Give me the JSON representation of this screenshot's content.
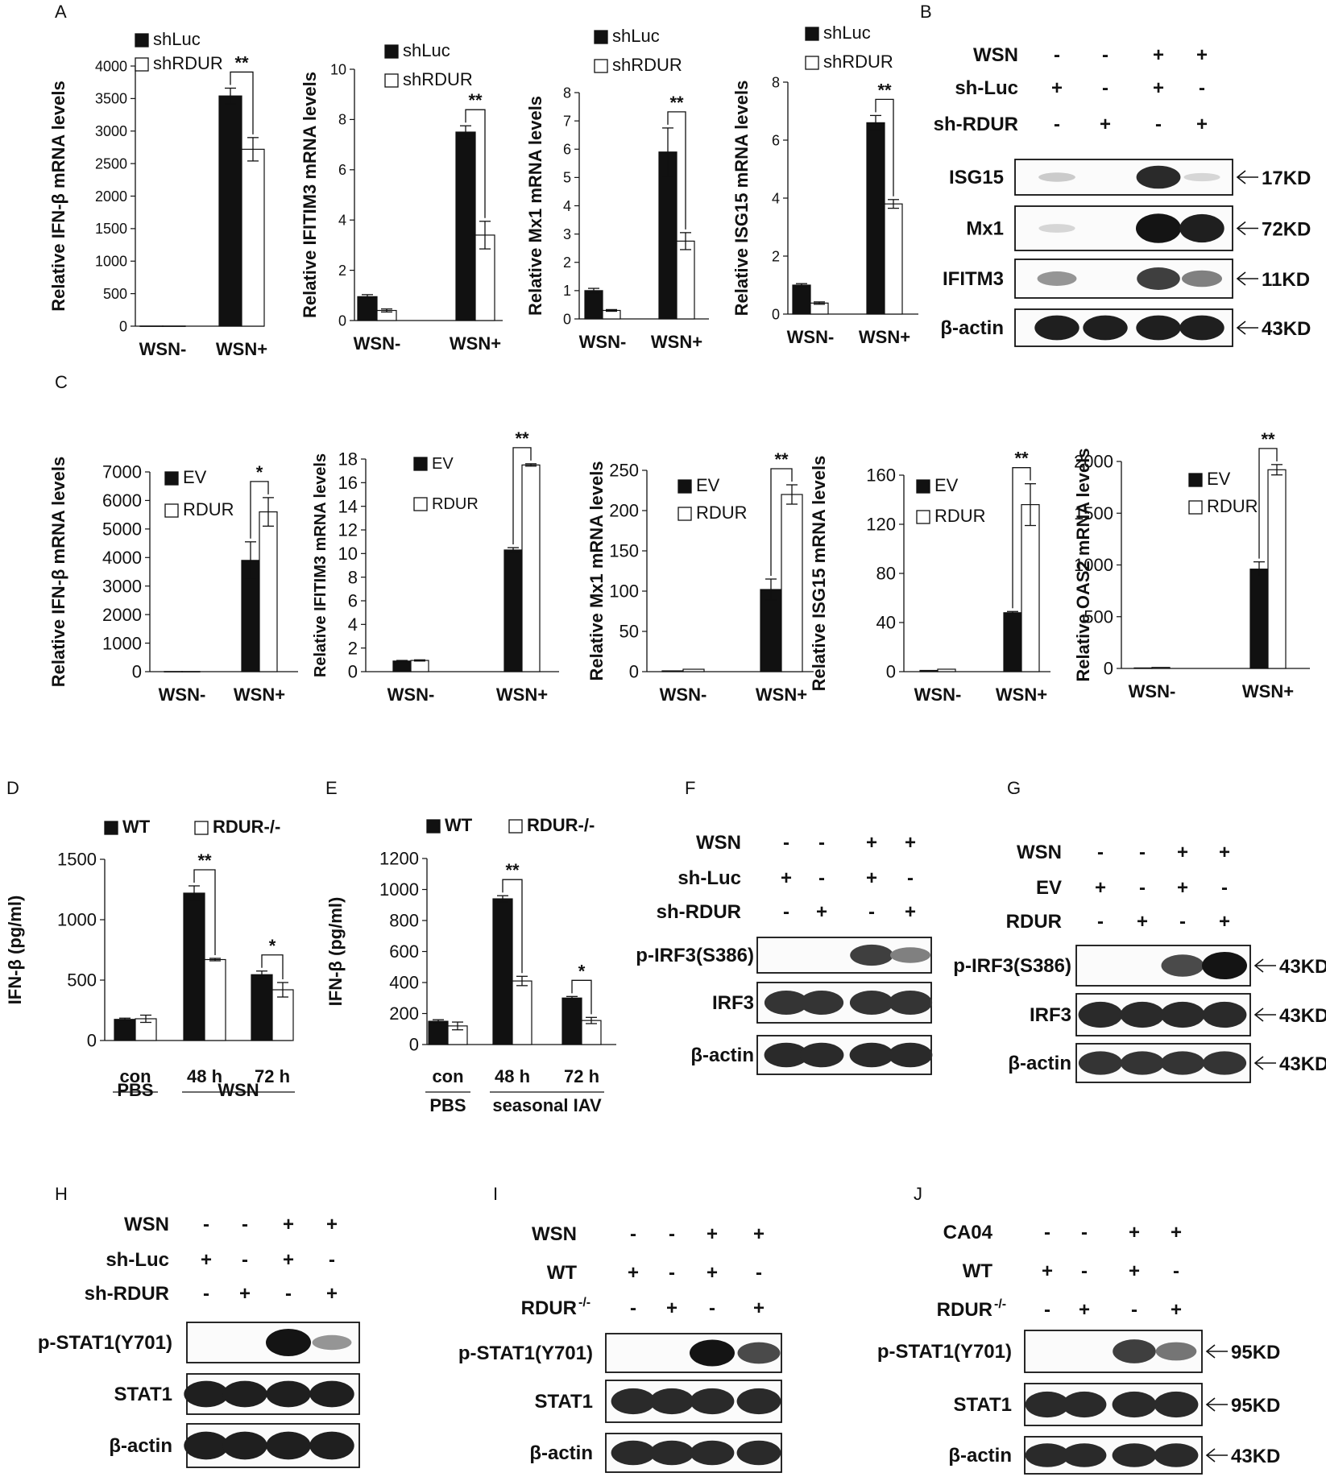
{
  "panel_letters": [
    "A",
    "B",
    "C",
    "D",
    "E",
    "F",
    "G",
    "H",
    "I",
    "J"
  ],
  "chart_data": [
    {
      "panel": "A",
      "type": "bar",
      "ylabel": "Relative IFN-β mRNA levels",
      "categories": [
        "WSN-",
        "WSN+"
      ],
      "ylim": [
        0,
        4000
      ],
      "yticks": [
        0,
        500,
        1000,
        1500,
        2000,
        2500,
        3000,
        3500,
        4000
      ],
      "series": [
        {
          "name": "shLuc",
          "fill": "#111111",
          "values": [
            2,
            3540
          ],
          "err": [
            0,
            120
          ]
        },
        {
          "name": "shRDUR",
          "fill": "#ffffff",
          "values": [
            2,
            2720
          ],
          "err": [
            0,
            180
          ]
        }
      ],
      "sig": [
        {
          "cat": 1,
          "label": "**"
        }
      ]
    },
    {
      "panel": "A",
      "type": "bar",
      "ylabel": "Relative IFITIM3 mRNA levels",
      "categories": [
        "WSN-",
        "WSN+"
      ],
      "ylim": [
        0,
        10
      ],
      "yticks": [
        0,
        2,
        4,
        6,
        8,
        10
      ],
      "series": [
        {
          "name": "shLuc",
          "fill": "#111111",
          "values": [
            0.95,
            7.5
          ],
          "err": [
            0.08,
            0.25
          ]
        },
        {
          "name": "shRDUR",
          "fill": "#ffffff",
          "values": [
            0.4,
            3.4
          ],
          "err": [
            0.06,
            0.55
          ]
        }
      ],
      "sig": [
        {
          "cat": 1,
          "label": "**"
        }
      ]
    },
    {
      "panel": "A",
      "type": "bar",
      "ylabel": "Relative Mx1 mRNA levels",
      "categories": [
        "WSN-",
        "WSN+"
      ],
      "ylim": [
        0,
        8
      ],
      "yticks": [
        0,
        1,
        2,
        3,
        4,
        5,
        6,
        7,
        8
      ],
      "series": [
        {
          "name": "shLuc",
          "fill": "#111111",
          "values": [
            1.0,
            5.9
          ],
          "err": [
            0.08,
            0.85
          ]
        },
        {
          "name": "shRDUR",
          "fill": "#ffffff",
          "values": [
            0.3,
            2.75
          ],
          "err": [
            0.03,
            0.3
          ]
        }
      ],
      "sig": [
        {
          "cat": 1,
          "label": "**"
        }
      ]
    },
    {
      "panel": "A",
      "type": "bar",
      "ylabel": "Relative ISG15 mRNA levels",
      "categories": [
        "WSN-",
        "WSN+"
      ],
      "ylim": [
        0,
        8
      ],
      "yticks": [
        0,
        2,
        4,
        6,
        8
      ],
      "series": [
        {
          "name": "shLuc",
          "fill": "#111111",
          "values": [
            1.0,
            6.6
          ],
          "err": [
            0.05,
            0.25
          ]
        },
        {
          "name": "shRDUR",
          "fill": "#ffffff",
          "values": [
            0.38,
            3.8
          ],
          "err": [
            0.04,
            0.15
          ]
        }
      ],
      "sig": [
        {
          "cat": 1,
          "label": "**"
        }
      ]
    },
    {
      "panel": "C",
      "type": "bar",
      "ylabel": "Relative IFN-β  mRNA levels",
      "categories": [
        "WSN-",
        "WSN+"
      ],
      "ylim": [
        0,
        7000
      ],
      "yticks": [
        0,
        1000,
        2000,
        3000,
        4000,
        5000,
        6000,
        7000
      ],
      "series": [
        {
          "name": "EV",
          "fill": "#111111",
          "values": [
            5,
            3900
          ],
          "err": [
            0,
            650
          ]
        },
        {
          "name": "RDUR",
          "fill": "#ffffff",
          "values": [
            5,
            5600
          ],
          "err": [
            0,
            500
          ]
        }
      ],
      "sig": [
        {
          "cat": 1,
          "label": "*"
        }
      ]
    },
    {
      "panel": "C",
      "type": "bar",
      "ylabel": "Relative IFITIM3 mRNA levels",
      "categories": [
        "WSN-",
        "WSN+"
      ],
      "ylim": [
        0,
        18
      ],
      "yticks": [
        0,
        2,
        4,
        6,
        8,
        10,
        12,
        14,
        16,
        18
      ],
      "series": [
        {
          "name": "EV",
          "fill": "#111111",
          "values": [
            0.9,
            10.3
          ],
          "err": [
            0.05,
            0.2
          ]
        },
        {
          "name": "RDUR",
          "fill": "#ffffff",
          "values": [
            0.95,
            17.5
          ],
          "err": [
            0.05,
            0.1
          ]
        }
      ],
      "sig": [
        {
          "cat": 1,
          "label": "**"
        }
      ]
    },
    {
      "panel": "C",
      "type": "bar",
      "ylabel": "Relative Mx1 mRNA levels",
      "categories": [
        "WSN-",
        "WSN+"
      ],
      "ylim": [
        0,
        250
      ],
      "yticks": [
        0,
        50,
        100,
        150,
        200,
        250
      ],
      "series": [
        {
          "name": "EV",
          "fill": "#111111",
          "values": [
            1,
            102
          ],
          "err": [
            0,
            13
          ]
        },
        {
          "name": "RDUR",
          "fill": "#ffffff",
          "values": [
            3,
            220
          ],
          "err": [
            0,
            12
          ]
        }
      ],
      "sig": [
        {
          "cat": 1,
          "label": "**"
        }
      ]
    },
    {
      "panel": "C",
      "type": "bar",
      "ylabel": "Relative ISG15 mRNA levels",
      "categories": [
        "WSN-",
        "WSN+"
      ],
      "ylim": [
        0,
        160
      ],
      "yticks": [
        0,
        40,
        80,
        120,
        160
      ],
      "series": [
        {
          "name": "EV",
          "fill": "#111111",
          "values": [
            1,
            48
          ],
          "err": [
            0,
            1
          ]
        },
        {
          "name": "RDUR",
          "fill": "#ffffff",
          "values": [
            2,
            136
          ],
          "err": [
            0,
            17
          ]
        }
      ],
      "sig": [
        {
          "cat": 1,
          "label": "**"
        }
      ]
    },
    {
      "panel": "C",
      "type": "bar",
      "ylabel": "Relative OAS2 mRNA levels",
      "categories": [
        "WSN-",
        "WSN+"
      ],
      "ylim": [
        0,
        2000
      ],
      "yticks": [
        0,
        500,
        1000,
        1500,
        2000
      ],
      "series": [
        {
          "name": "EV",
          "fill": "#111111",
          "values": [
            5,
            960
          ],
          "err": [
            0,
            70
          ]
        },
        {
          "name": "RDUR",
          "fill": "#ffffff",
          "values": [
            10,
            1920
          ],
          "err": [
            0,
            50
          ]
        }
      ],
      "sig": [
        {
          "cat": 1,
          "label": "**"
        }
      ]
    },
    {
      "panel": "D",
      "type": "bar",
      "ylabel": "IFN-β (pg/ml)",
      "categories": [
        "con",
        "48 h",
        "72 h"
      ],
      "groups": [
        {
          "label": "PBS",
          "from": 0,
          "to": 0
        },
        {
          "label": "WSN",
          "from": 1,
          "to": 2
        }
      ],
      "ylim": [
        0,
        1500
      ],
      "yticks": [
        0,
        500,
        1000,
        1500
      ],
      "series": [
        {
          "name": "WT",
          "fill": "#111111",
          "values": [
            175,
            1220,
            545
          ],
          "err": [
            10,
            60,
            30
          ]
        },
        {
          "name": "RDUR-/-",
          "fill": "#ffffff",
          "values": [
            180,
            670,
            420
          ],
          "err": [
            30,
            10,
            60
          ]
        }
      ],
      "sig": [
        {
          "cat": 1,
          "label": "**"
        },
        {
          "cat": 2,
          "label": "*"
        }
      ]
    },
    {
      "panel": "E",
      "type": "bar",
      "ylabel": "IFN-β (pg/ml)",
      "categories": [
        "con",
        "48 h",
        "72 h"
      ],
      "groups": [
        {
          "label": "PBS",
          "from": 0,
          "to": 0
        },
        {
          "label": "seasonal IAV",
          "from": 1,
          "to": 2
        }
      ],
      "ylim": [
        0,
        1200
      ],
      "yticks": [
        0,
        200,
        400,
        600,
        800,
        1000,
        1200
      ],
      "series": [
        {
          "name": "WT",
          "fill": "#111111",
          "values": [
            150,
            940,
            300
          ],
          "err": [
            10,
            20,
            10
          ]
        },
        {
          "name": "RDUR-/-",
          "fill": "#ffffff",
          "values": [
            120,
            410,
            155
          ],
          "err": [
            25,
            30,
            20
          ]
        }
      ],
      "sig": [
        {
          "cat": 1,
          "label": "**"
        },
        {
          "cat": 2,
          "label": "*"
        }
      ]
    }
  ],
  "blots": [
    {
      "panel": "B",
      "conditions": [
        {
          "label": "WSN",
          "signs": [
            "-",
            "-",
            "+",
            "+"
          ]
        },
        {
          "label": "sh-Luc",
          "signs": [
            "+",
            "-",
            "+",
            "-"
          ]
        },
        {
          "label": "sh-RDUR",
          "signs": [
            "-",
            "+",
            "-",
            "+"
          ]
        }
      ],
      "rows": [
        {
          "label": "ISG15",
          "size": "17KD",
          "intensity": [
            0.15,
            0,
            0.9,
            0.1
          ]
        },
        {
          "label": "Mx1",
          "size": "72KD",
          "intensity": [
            0.1,
            0,
            1,
            0.95
          ]
        },
        {
          "label": "IFITM3",
          "size": "11KD",
          "intensity": [
            0.4,
            0,
            0.8,
            0.5
          ]
        },
        {
          "label": "β-actin",
          "size": "43KD",
          "intensity": [
            0.95,
            0.95,
            0.95,
            0.95
          ]
        }
      ]
    },
    {
      "panel": "F",
      "conditions": [
        {
          "label": "WSN",
          "signs": [
            "-",
            "-",
            "+",
            "+"
          ]
        },
        {
          "label": "sh-Luc",
          "signs": [
            "+",
            "-",
            "+",
            "-"
          ]
        },
        {
          "label": "sh-RDUR",
          "signs": [
            "-",
            "+",
            "-",
            "+"
          ]
        }
      ],
      "rows": [
        {
          "label": "p-IRF3(S386)",
          "size": "",
          "intensity": [
            0,
            0,
            0.8,
            0.5
          ]
        },
        {
          "label": "IRF3",
          "size": "",
          "intensity": [
            0.85,
            0.85,
            0.85,
            0.85
          ]
        },
        {
          "label": "β-actin",
          "size": "",
          "intensity": [
            0.9,
            0.9,
            0.9,
            0.9
          ]
        }
      ]
    },
    {
      "panel": "G",
      "conditions": [
        {
          "label": "WSN",
          "signs": [
            "-",
            "-",
            "+",
            "+"
          ]
        },
        {
          "label": "EV",
          "signs": [
            "+",
            "-",
            "+",
            "-"
          ]
        },
        {
          "label": "RDUR",
          "signs": [
            "-",
            "+",
            "-",
            "+"
          ]
        }
      ],
      "rows": [
        {
          "label": "p-IRF3(S386)",
          "size": "43KD",
          "intensity": [
            0,
            0,
            0.75,
            1
          ]
        },
        {
          "label": "IRF3",
          "size": "43KD",
          "intensity": [
            0.9,
            0.9,
            0.9,
            0.9
          ]
        },
        {
          "label": "β-actin",
          "size": "43KD",
          "intensity": [
            0.85,
            0.85,
            0.85,
            0.85
          ]
        }
      ]
    },
    {
      "panel": "H",
      "conditions": [
        {
          "label": "WSN",
          "signs": [
            "-",
            "-",
            "+",
            "+"
          ]
        },
        {
          "label": "sh-Luc",
          "signs": [
            "+",
            "-",
            "+",
            "-"
          ]
        },
        {
          "label": "sh-RDUR",
          "signs": [
            "-",
            "+",
            "-",
            "+"
          ]
        }
      ],
      "rows": [
        {
          "label": "p-STAT1(Y701)",
          "size": "",
          "intensity": [
            0,
            0,
            1,
            0.4
          ]
        },
        {
          "label": "STAT1",
          "size": "",
          "intensity": [
            0.95,
            0.95,
            0.95,
            0.95
          ]
        },
        {
          "label": "β-actin",
          "size": "",
          "intensity": [
            0.95,
            0.95,
            0.95,
            0.95
          ]
        }
      ]
    },
    {
      "panel": "I",
      "conditions": [
        {
          "label": "WSN",
          "signs": [
            "-",
            "-",
            "+",
            "+"
          ]
        },
        {
          "label": "WT",
          "signs": [
            "+",
            "-",
            "+",
            "-"
          ]
        },
        {
          "label": "RDUR",
          "sup": "-/-",
          "signs": [
            "-",
            "+",
            "-",
            "+"
          ]
        }
      ],
      "rows": [
        {
          "label": "p-STAT1(Y701)",
          "size": "",
          "intensity": [
            0,
            0,
            1,
            0.75
          ]
        },
        {
          "label": "STAT1",
          "size": "",
          "intensity": [
            0.9,
            0.9,
            0.9,
            0.9
          ]
        },
        {
          "label": "β-actin",
          "size": "",
          "intensity": [
            0.9,
            0.9,
            0.9,
            0.9
          ]
        }
      ]
    },
    {
      "panel": "J",
      "conditions": [
        {
          "label": "CA04",
          "signs": [
            "-",
            "-",
            "+",
            "+"
          ]
        },
        {
          "label": "WT",
          "signs": [
            "+",
            "-",
            "+",
            "-"
          ]
        },
        {
          "label": "RDUR",
          "sup": "-/-",
          "signs": [
            "-",
            "+",
            "-",
            "+"
          ]
        }
      ],
      "rows": [
        {
          "label": "p-STAT1(Y701)",
          "size": "95KD",
          "intensity": [
            0,
            0,
            0.8,
            0.55
          ]
        },
        {
          "label": "STAT1",
          "size": "95KD",
          "intensity": [
            0.9,
            0.9,
            0.9,
            0.9
          ]
        },
        {
          "label": "β-actin",
          "size": "43KD",
          "intensity": [
            0.9,
            0.9,
            0.9,
            0.9
          ]
        }
      ]
    }
  ]
}
